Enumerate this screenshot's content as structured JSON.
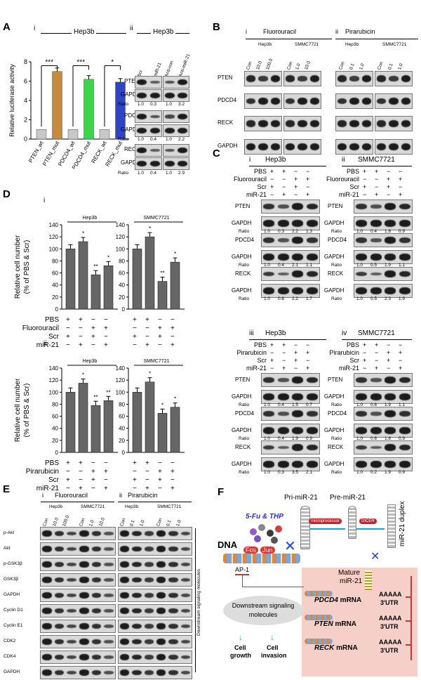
{
  "panels": {
    "A": "A",
    "B": "B",
    "C": "C",
    "D": "D",
    "E": "E",
    "F": "F"
  },
  "A": {
    "i_label": "i",
    "cell": "Hep3b",
    "ii_label": "ii",
    "ylabel": "Relative luciferase activity",
    "yticks": [
      "0",
      "2",
      "4",
      "6",
      "8"
    ],
    "sig": [
      "***",
      "***",
      "*"
    ],
    "xcats": [
      "PTEN_wt",
      "PTEN_mut",
      "PDCD4_wt",
      "PDCD4_mut",
      "RECK_wt",
      "RECK_mut"
    ],
    "values": [
      1.0,
      7.0,
      1.0,
      6.2,
      1.0,
      5.9
    ],
    "bar_colors": [
      "#c8c8c8",
      "#c58a3c",
      "#c8c8c8",
      "#3cd44a",
      "#c8c8c8",
      "#2f43c9"
    ],
    "ii_cols": [
      "Scr",
      "miR-21",
      "Anti-con",
      "Anti-miR-21"
    ],
    "ii_rows": [
      "PTEN",
      "GAPDH",
      "PDCD4",
      "GAPDH",
      "RECK",
      "GAPDH"
    ],
    "ratio_label": "Ratio",
    "ratios": [
      [
        "1.0",
        "0.3",
        "1.0",
        "3.2"
      ],
      [
        "1.0",
        "0.4",
        "1.0",
        "2.2"
      ],
      [
        "1.0",
        "0.4",
        "1.0",
        "2.9"
      ]
    ]
  },
  "B": {
    "i_label": "i",
    "ii_label": "ii",
    "drug1": "Fluorouracil",
    "drug2": "Pirarubicin",
    "cell1": "Hep3b",
    "cell2": "SMMC7721",
    "cols1": [
      "Con",
      "10.0",
      "100.0",
      "Con",
      "1.0",
      "10.0"
    ],
    "cols2": [
      "Con",
      "0.1",
      "1.0",
      "Con",
      "0.1",
      "1.0"
    ],
    "rows": [
      "PTEN",
      "PDCD4",
      "RECK",
      "GAPDH"
    ]
  },
  "C": {
    "sub": [
      "i",
      "ii",
      "iii",
      "iv"
    ],
    "cells": [
      "Hep3b",
      "SMMC7721",
      "Hep3b",
      "SMMC7721"
    ],
    "treat_rows_top": [
      "PBS",
      "Fluorouracil",
      "Scr",
      "miR-21"
    ],
    "treat_rows_bottom": [
      "PBS",
      "Pirarubicin",
      "Scr",
      "miR-21"
    ],
    "signs": [
      [
        "+",
        "+",
        "−",
        "−"
      ],
      [
        "−",
        "−",
        "+",
        "+"
      ],
      [
        "+",
        "−",
        "+",
        "−"
      ],
      [
        "−",
        "+",
        "−",
        "+"
      ]
    ],
    "rows": [
      "PTEN",
      "GAPDH",
      "PDCD4",
      "GAPDH",
      "RECK",
      "GAPDH"
    ],
    "ratio_label": "Ratio",
    "ratios": {
      "i": [
        [
          "1.0",
          "0.3",
          "2.2",
          "1.3"
        ],
        [
          "1.0",
          "0.4",
          "2.1",
          "1.1"
        ],
        [
          "1.0",
          "0.6",
          "2.2",
          "1.7"
        ]
      ],
      "ii": [
        [
          "1.0",
          "0.4",
          "1.8",
          "0.9"
        ],
        [
          "1.0",
          "0.5",
          "1.9",
          "1.1"
        ],
        [
          "1.0",
          "0.5",
          "2.3",
          "1.9"
        ]
      ],
      "iii": [
        [
          "1.0",
          "0.4",
          "1.5",
          "0.7"
        ],
        [
          "1.0",
          "0.4",
          "1.9",
          "0.9"
        ],
        [
          "1.0",
          "0.3",
          "3.5",
          "2.1"
        ]
      ],
      "iv": [
        [
          "1.0",
          "0.6",
          "1.9",
          "1.1"
        ],
        [
          "1.0",
          "0.6",
          "1.8",
          "0.9"
        ],
        [
          "1.0",
          "0.2",
          "1.9",
          "0.9"
        ]
      ]
    }
  },
  "D": {
    "sub": [
      "i",
      "ii"
    ],
    "ylabel1": "Relative cell number",
    "ylabel2": "(% of PBS & Scr)",
    "yticks": [
      "0",
      "20",
      "40",
      "60",
      "80",
      "100",
      "120",
      "140"
    ],
    "cells": [
      "Hep3b",
      "SMMC7721"
    ],
    "i_values": {
      "Hep3b": [
        100,
        112,
        57,
        72
      ],
      "SMMC7721": [
        100,
        120,
        46,
        78
      ]
    },
    "ii_values": {
      "Hep3b": [
        100,
        115,
        78,
        86
      ],
      "SMMC7721": [
        100,
        117,
        65,
        75
      ]
    },
    "i_sig": {
      "Hep3b": [
        "",
        "*",
        "**",
        "*"
      ],
      "SMMC7721": [
        "",
        "*",
        "**",
        "*"
      ]
    },
    "ii_sig": {
      "Hep3b": [
        "",
        "*",
        "**",
        "**"
      ],
      "SMMC7721": [
        "",
        "*",
        "*",
        "*"
      ]
    },
    "rows_i": [
      "PBS",
      "Fluorouracil",
      "Scr",
      "miR-21"
    ],
    "rows_ii": [
      "PBS",
      "Pirarubicin",
      "Scr",
      "miR-21"
    ]
  },
  "E": {
    "i_label": "i",
    "ii_label": "ii",
    "drug1": "Fluorouracil",
    "drug2": "Pirarubicin",
    "cell1": "Hep3b",
    "cell2": "SMMC7721",
    "cols1": [
      "Con",
      "10.0",
      "100.0",
      "Con",
      "1.0",
      "10.0"
    ],
    "cols2": [
      "Con",
      "0.1",
      "1.0",
      "Con",
      "0.1",
      "1.0"
    ],
    "rows": [
      "p-Akt",
      "Akt",
      "p-GSK3β",
      "GSK3β",
      "GAPDH",
      "Cyclin D1",
      "Cyclin E1",
      "CDK2",
      "CDK4",
      "GAPDH"
    ],
    "side_label": "Downstream signaling molecules"
  },
  "F": {
    "drugs": "5-Fu & THP",
    "pri": "Pri-miR-21",
    "pre": "Pre-miR-21",
    "microprocessor": "microprocessor",
    "dicer": "DICER",
    "duplex": "miR-21 duplex",
    "dna": "DNA",
    "fos": "Fos",
    "jun": "Jun",
    "ap1": "AP-1",
    "mature": "Mature",
    "mature2": "miR-21",
    "mrna": [
      {
        "gene": "PDCD4",
        "suffix": " mRNA"
      },
      {
        "gene": "PTEN",
        "suffix": " mRNA"
      },
      {
        "gene": "RECK",
        "suffix": " mRNA"
      }
    ],
    "polya": "AAAAA",
    "utr": "3'UTR",
    "downstream": "Downstream signaling",
    "molecules": "molecules",
    "growth1": "Cell",
    "growth2": "growth",
    "invasion1": "Cell",
    "invasion2": "invasion"
  }
}
